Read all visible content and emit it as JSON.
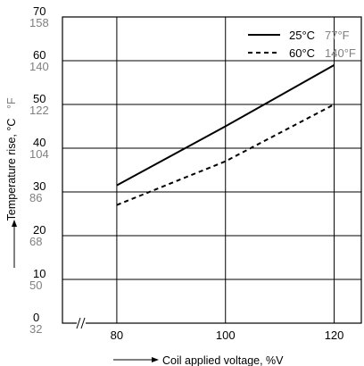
{
  "chart_data": {
    "type": "line",
    "xlabel": "Coil applied voltage, %V",
    "ylabel": "Temperature rise, °C",
    "ylabel_unit_alt": "°F",
    "xlim": [
      70,
      125
    ],
    "ylim": [
      0,
      70
    ],
    "x_ticks": [
      "80",
      "100",
      "120"
    ],
    "x_break_mark": true,
    "y_ticks_c": [
      "0",
      "10",
      "20",
      "30",
      "40",
      "50",
      "60",
      "70"
    ],
    "y_ticks_f": [
      "32",
      "50",
      "68",
      "86",
      "104",
      "122",
      "140",
      "158"
    ],
    "grid": true,
    "legend_position": "top-right",
    "series": [
      {
        "name": "25°C",
        "name_alt": "77°F",
        "style": "solid",
        "color": "#000000",
        "x": [
          80,
          100,
          120
        ],
        "y": [
          31.5,
          45,
          59
        ]
      },
      {
        "name": "60°C",
        "name_alt": "140°F",
        "style": "dashed",
        "color": "#000000",
        "x": [
          80,
          100,
          120
        ],
        "y": [
          27,
          37,
          50
        ]
      }
    ]
  }
}
